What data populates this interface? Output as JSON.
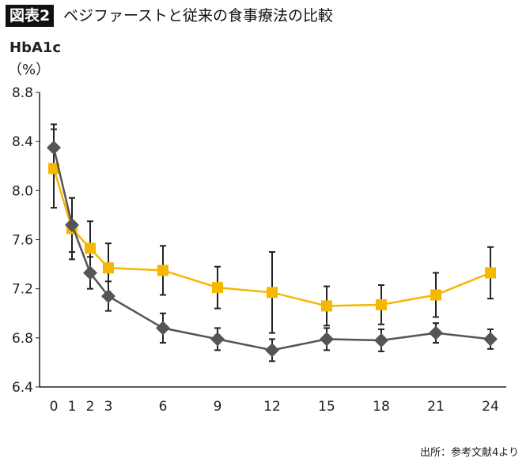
{
  "header": {
    "badge": "図表2",
    "title": "ベジファーストと従来の食事療法の比較"
  },
  "source": "出所：参考文献4より",
  "chart_data": {
    "type": "line",
    "title": "ベジファーストと従来の食事療法の比較",
    "ylabel": "HbA1c",
    "yunit": "（%）",
    "xlabel": "",
    "x": [
      0,
      1,
      2,
      3,
      6,
      9,
      12,
      15,
      18,
      21,
      24
    ],
    "xticks": [
      "0",
      "1",
      "2",
      "3",
      "6",
      "9",
      "12",
      "15",
      "18",
      "21",
      "24"
    ],
    "ylim": [
      6.4,
      8.8
    ],
    "yticks": [
      "6.4",
      "6.8",
      "7.2",
      "7.6",
      "8.0",
      "8.4",
      "8.8"
    ],
    "grid": false,
    "series": [
      {
        "color": "#f5b800",
        "marker": "square",
        "values": [
          8.18,
          7.69,
          7.53,
          7.37,
          7.35,
          7.21,
          7.17,
          7.06,
          7.07,
          7.15,
          7.33
        ],
        "error": [
          0.32,
          0.25,
          0.22,
          0.2,
          0.2,
          0.17,
          0.33,
          0.16,
          0.16,
          0.18,
          0.21
        ]
      },
      {
        "color": "#555555",
        "marker": "diamond",
        "values": [
          8.35,
          7.72,
          7.33,
          7.14,
          6.88,
          6.79,
          6.7,
          6.79,
          6.78,
          6.84,
          6.79
        ],
        "error": [
          0.19,
          0.22,
          0.13,
          0.12,
          0.12,
          0.09,
          0.09,
          0.09,
          0.09,
          0.08,
          0.08
        ]
      }
    ]
  }
}
